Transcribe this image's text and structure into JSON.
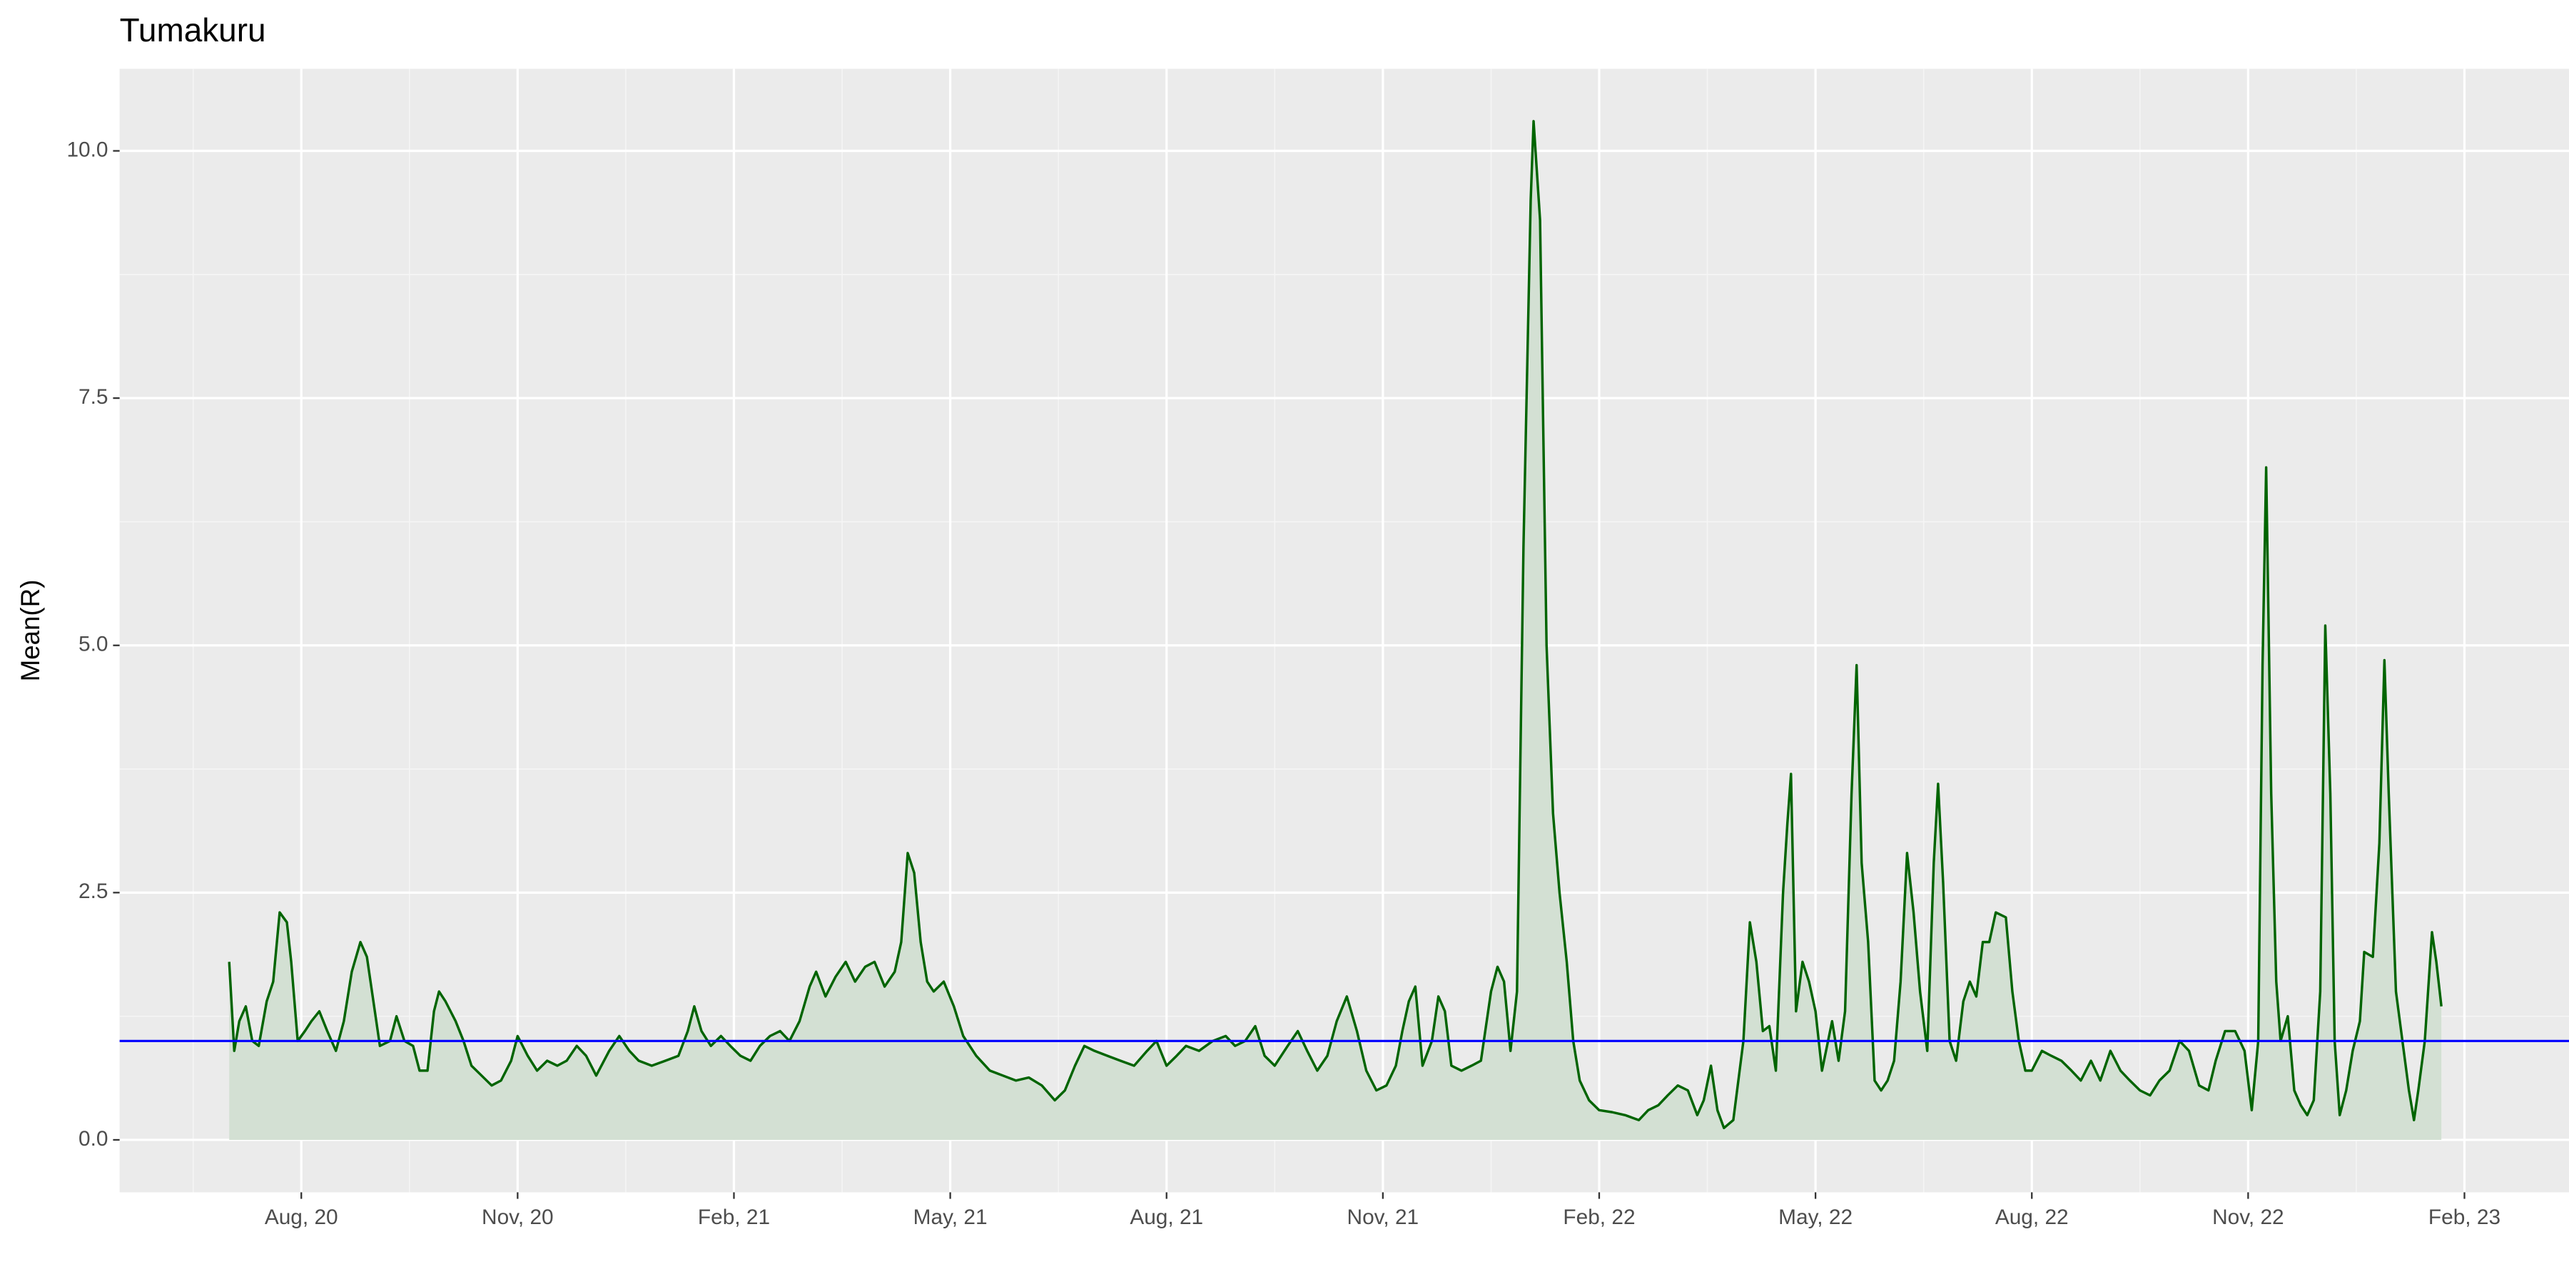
{
  "chart_data": {
    "type": "line",
    "title": "Tumakuru",
    "y_label": "Mean(R)",
    "color": "#006400",
    "area_fill": "#d3e0d3",
    "grid": true,
    "reference_line": {
      "y": 1,
      "color": "#0000ff"
    },
    "xlim": [
      4.48,
      38.45
    ],
    "xticks": [
      {
        "value": 7,
        "label": "Aug, 20"
      },
      {
        "value": 10,
        "label": "Nov, 20"
      },
      {
        "value": 13,
        "label": "Feb, 21"
      },
      {
        "value": 16,
        "label": "May, 21"
      },
      {
        "value": 19,
        "label": "Aug, 21"
      },
      {
        "value": 22,
        "label": "Nov, 21"
      },
      {
        "value": 25,
        "label": "Feb, 22"
      },
      {
        "value": 28,
        "label": "May, 22"
      },
      {
        "value": 31,
        "label": "Aug, 22"
      },
      {
        "value": 34,
        "label": "Nov, 22"
      },
      {
        "value": 37,
        "label": "Feb, 23"
      }
    ],
    "ylim": [
      -0.53,
      10.83
    ],
    "yticks": [
      {
        "value": 0,
        "label": "0.0"
      },
      2.5,
      {
        "value": 5,
        "label": "5.0"
      },
      7.5,
      {
        "value": 10,
        "label": "10.0"
      }
    ],
    "x": [
      6.0,
      6.07,
      6.14,
      6.23,
      6.32,
      6.41,
      6.52,
      6.61,
      6.7,
      6.8,
      6.86,
      6.95,
      7.05,
      7.14,
      7.25,
      7.36,
      7.48,
      7.59,
      7.7,
      7.82,
      7.91,
      8.0,
      8.09,
      8.23,
      8.32,
      8.43,
      8.55,
      8.64,
      8.75,
      8.84,
      8.91,
      9.0,
      9.14,
      9.25,
      9.36,
      9.5,
      9.64,
      9.77,
      9.91,
      10.0,
      10.14,
      10.27,
      10.41,
      10.55,
      10.68,
      10.82,
      10.95,
      11.09,
      11.27,
      11.41,
      11.55,
      11.68,
      11.86,
      12.05,
      12.23,
      12.36,
      12.45,
      12.55,
      12.68,
      12.82,
      12.95,
      13.09,
      13.23,
      13.36,
      13.5,
      13.64,
      13.77,
      13.91,
      14.05,
      14.14,
      14.27,
      14.41,
      14.55,
      14.68,
      14.82,
      14.95,
      15.09,
      15.23,
      15.32,
      15.41,
      15.5,
      15.59,
      15.68,
      15.77,
      15.91,
      16.05,
      16.18,
      16.36,
      16.55,
      16.73,
      16.91,
      17.09,
      17.27,
      17.45,
      17.59,
      17.73,
      17.86,
      18.0,
      18.18,
      18.36,
      18.55,
      18.73,
      18.86,
      19.0,
      19.14,
      19.27,
      19.45,
      19.64,
      19.82,
      19.95,
      20.09,
      20.23,
      20.36,
      20.5,
      20.68,
      20.82,
      20.95,
      21.09,
      21.23,
      21.36,
      21.5,
      21.64,
      21.77,
      21.91,
      22.05,
      22.18,
      22.27,
      22.36,
      22.45,
      22.55,
      22.68,
      22.77,
      22.86,
      22.95,
      23.09,
      23.23,
      23.36,
      23.5,
      23.59,
      23.68,
      23.77,
      23.86,
      23.95,
      24.05,
      24.09,
      24.18,
      24.27,
      24.36,
      24.45,
      24.55,
      24.64,
      24.73,
      24.86,
      25.0,
      25.18,
      25.36,
      25.55,
      25.68,
      25.82,
      25.95,
      26.09,
      26.23,
      26.36,
      26.45,
      26.55,
      26.64,
      26.73,
      26.86,
      27.0,
      27.09,
      27.18,
      27.27,
      27.36,
      27.45,
      27.55,
      27.61,
      27.66,
      27.73,
      27.82,
      27.91,
      28.0,
      28.09,
      28.23,
      28.32,
      28.41,
      28.5,
      28.57,
      28.64,
      28.73,
      28.82,
      28.91,
      29.0,
      29.09,
      29.18,
      29.27,
      29.36,
      29.45,
      29.55,
      29.64,
      29.7,
      29.77,
      29.86,
      29.95,
      30.05,
      30.14,
      30.23,
      30.32,
      30.41,
      30.5,
      30.64,
      30.73,
      30.82,
      30.91,
      31.0,
      31.14,
      31.27,
      31.41,
      31.55,
      31.68,
      31.82,
      31.95,
      32.09,
      32.23,
      32.36,
      32.5,
      32.64,
      32.77,
      32.91,
      33.05,
      33.18,
      33.32,
      33.45,
      33.55,
      33.68,
      33.82,
      33.95,
      34.05,
      34.14,
      34.2,
      34.25,
      34.32,
      34.39,
      34.45,
      34.55,
      34.64,
      34.73,
      34.82,
      34.91,
      35.0,
      35.07,
      35.14,
      35.2,
      35.27,
      35.36,
      35.45,
      35.55,
      35.61,
      35.73,
      35.82,
      35.89,
      35.95,
      36.05,
      36.14,
      36.23,
      36.3,
      36.36,
      36.45,
      36.55,
      36.61,
      36.68
    ],
    "values": [
      1.8,
      0.9,
      1.2,
      1.35,
      1.0,
      0.95,
      1.4,
      1.6,
      2.3,
      2.2,
      1.8,
      1.0,
      1.1,
      1.2,
      1.3,
      1.1,
      0.9,
      1.2,
      1.7,
      2.0,
      1.85,
      1.4,
      0.95,
      1.0,
      1.25,
      1.0,
      0.95,
      0.7,
      0.7,
      1.3,
      1.5,
      1.4,
      1.2,
      1.0,
      0.75,
      0.65,
      0.55,
      0.6,
      0.8,
      1.05,
      0.85,
      0.7,
      0.8,
      0.75,
      0.8,
      0.95,
      0.85,
      0.65,
      0.9,
      1.05,
      0.9,
      0.8,
      0.75,
      0.8,
      0.85,
      1.1,
      1.35,
      1.1,
      0.95,
      1.05,
      0.95,
      0.85,
      0.8,
      0.95,
      1.05,
      1.1,
      1.0,
      1.2,
      1.55,
      1.7,
      1.45,
      1.65,
      1.8,
      1.6,
      1.75,
      1.8,
      1.55,
      1.7,
      2.0,
      2.9,
      2.7,
      2.0,
      1.6,
      1.5,
      1.6,
      1.35,
      1.05,
      0.85,
      0.7,
      0.65,
      0.6,
      0.63,
      0.55,
      0.4,
      0.5,
      0.75,
      0.95,
      0.9,
      0.85,
      0.8,
      0.75,
      0.9,
      1.0,
      0.75,
      0.85,
      0.95,
      0.9,
      1.0,
      1.05,
      0.95,
      1.0,
      1.15,
      0.85,
      0.75,
      0.95,
      1.1,
      0.9,
      0.7,
      0.85,
      1.2,
      1.45,
      1.1,
      0.7,
      0.5,
      0.55,
      0.75,
      1.1,
      1.4,
      1.55,
      0.75,
      1.0,
      1.45,
      1.3,
      0.75,
      0.7,
      0.75,
      0.8,
      1.5,
      1.75,
      1.6,
      0.9,
      1.5,
      6.0,
      9.5,
      10.3,
      9.3,
      5.0,
      3.3,
      2.5,
      1.8,
      1.0,
      0.6,
      0.4,
      0.3,
      0.28,
      0.25,
      0.2,
      0.3,
      0.35,
      0.45,
      0.55,
      0.5,
      0.25,
      0.4,
      0.75,
      0.3,
      0.12,
      0.2,
      1.0,
      2.2,
      1.8,
      1.1,
      1.15,
      0.7,
      2.5,
      3.2,
      3.7,
      1.3,
      1.8,
      1.6,
      1.3,
      0.7,
      1.2,
      0.8,
      1.3,
      3.5,
      4.8,
      2.8,
      2.0,
      0.6,
      0.5,
      0.6,
      0.8,
      1.6,
      2.9,
      2.3,
      1.5,
      0.9,
      2.8,
      3.6,
      2.6,
      1.0,
      0.8,
      1.4,
      1.6,
      1.45,
      2.0,
      2.0,
      2.3,
      2.25,
      1.5,
      1.0,
      0.7,
      0.7,
      0.9,
      0.85,
      0.8,
      0.7,
      0.6,
      0.8,
      0.6,
      0.9,
      0.7,
      0.6,
      0.5,
      0.45,
      0.6,
      0.7,
      1.0,
      0.9,
      0.55,
      0.5,
      0.8,
      1.1,
      1.1,
      0.9,
      0.3,
      1.0,
      4.8,
      6.8,
      3.5,
      1.6,
      1.0,
      1.25,
      0.5,
      0.35,
      0.25,
      0.4,
      1.5,
      5.2,
      3.5,
      1.0,
      0.25,
      0.5,
      0.9,
      1.2,
      1.9,
      1.85,
      3.0,
      4.85,
      3.5,
      1.5,
      1.0,
      0.5,
      0.2,
      0.5,
      1.0,
      2.1,
      1.8,
      1.35
    ]
  }
}
